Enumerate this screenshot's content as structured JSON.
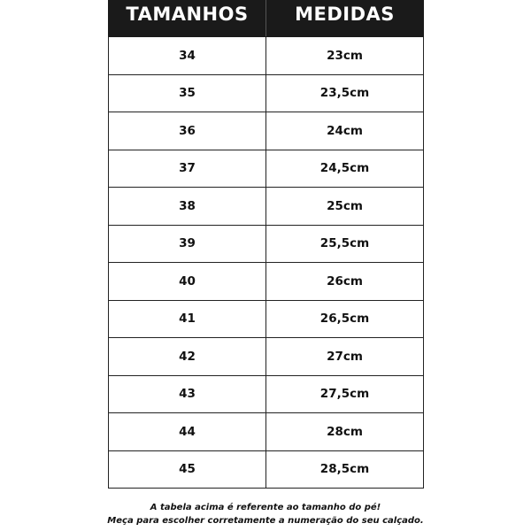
{
  "table": {
    "headers": [
      "TAMANHOS",
      "MEDIDAS"
    ],
    "rows": [
      [
        "34",
        "23cm"
      ],
      [
        "35",
        "23,5cm"
      ],
      [
        "36",
        "24cm"
      ],
      [
        "37",
        "24,5cm"
      ],
      [
        "38",
        "25cm"
      ],
      [
        "39",
        "25,5cm"
      ],
      [
        "40",
        "26cm"
      ],
      [
        "41",
        "26,5cm"
      ],
      [
        "42",
        "27cm"
      ],
      [
        "43",
        "27,5cm"
      ],
      [
        "44",
        "28cm"
      ],
      [
        "45",
        "28,5cm"
      ]
    ]
  },
  "notes": {
    "line1": "A tabela acima é referente ao tamanho do pé!",
    "line2": "Meça para escolher corretamente a numeração do seu calçado."
  }
}
